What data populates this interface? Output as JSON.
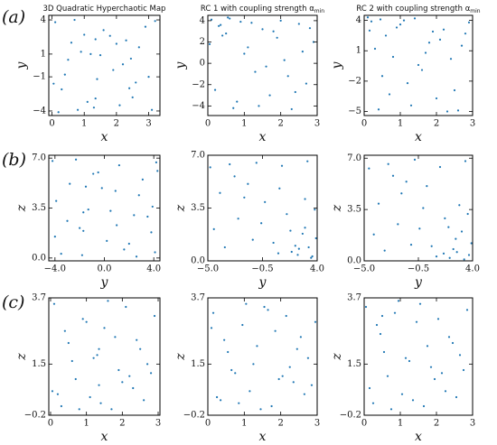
{
  "panel_labels": [
    "(a)",
    "(b)",
    "(c)"
  ],
  "chart_data": [
    {
      "type": "scatter",
      "title": "3D Quadratic Hyperchaotic Map",
      "xlabel": "x",
      "ylabel": "y",
      "color": "#1f77b4",
      "xlim": [
        -0.1,
        3.35
      ],
      "ylim": [
        -4.4,
        4.4
      ],
      "xticks": [
        0,
        1,
        2,
        3
      ],
      "yticks": [
        4,
        1,
        {
          "value": -1,
          "label": "−1"
        },
        {
          "value": -4,
          "label": "−4"
        }
      ],
      "x": [
        0.1,
        0.3,
        0.5,
        0.8,
        1.0,
        1.2,
        1.4,
        1.6,
        1.9,
        2.1,
        2.3,
        2.5,
        2.7,
        3.0,
        3.2,
        0.2,
        0.6,
        1.1,
        1.5,
        2.0,
        2.4,
        2.9,
        0.4,
        0.9,
        1.3,
        1.8,
        2.2,
        2.6,
        3.1,
        0.7,
        1.35,
        1.35,
        2.45,
        0.05
      ],
      "y": [
        3.8,
        -2.1,
        0.5,
        -3.9,
        2.7,
        1.0,
        -1.2,
        3.1,
        -0.4,
        -3.5,
        2.2,
        -2.8,
        1.6,
        -1.0,
        3.9,
        -4.1,
        2.0,
        -3.2,
        0.9,
        1.9,
        -2.0,
        3.4,
        -0.8,
        1.2,
        -3.7,
        2.6,
        0.1,
        -1.5,
        -3.9,
        4.0,
        2.3,
        -2.9,
        0.6,
        -1.6
      ]
    },
    {
      "type": "scatter",
      "title": "RC 1 with coupling strength α",
      "title_subscript": "min",
      "xlabel": "x",
      "ylabel": "y",
      "color": "#1f77b4",
      "xlim": [
        0,
        3
      ],
      "ylim": [
        -4.9,
        4.5
      ],
      "xticks": [
        0,
        1,
        2,
        3
      ],
      "yticks": [
        4,
        2,
        0,
        {
          "value": -2,
          "label": "−2"
        },
        {
          "value": -4,
          "label": "−4"
        }
      ],
      "x": [
        0.1,
        0.3,
        0.5,
        0.7,
        0.9,
        1.1,
        1.3,
        1.5,
        1.7,
        1.9,
        2.1,
        2.3,
        2.5,
        2.7,
        2.9,
        0.2,
        0.6,
        1.0,
        1.4,
        1.8,
        2.2,
        2.6,
        0.4,
        0.8,
        1.2,
        1.6,
        2.0,
        2.4,
        2.8,
        0.05,
        0.35,
        0.55
      ],
      "y": [
        4.1,
        3.5,
        2.8,
        -4.2,
        3.9,
        1.5,
        -0.8,
        3.2,
        -3.0,
        2.4,
        0.3,
        -4.3,
        3.7,
        -1.9,
        2.0,
        -2.5,
        4.2,
        0.9,
        -4.0,
        3.0,
        -1.2,
        1.1,
        2.6,
        -3.6,
        3.8,
        -0.3,
        4.0,
        -2.7,
        3.3,
        1.8,
        3.6,
        4.3
      ]
    },
    {
      "type": "scatter",
      "title": "RC 2 with coupling strength α",
      "title_subscript": "min",
      "xlabel": "x",
      "ylabel": "y",
      "color": "#1f77b4",
      "xlim": [
        0,
        3
      ],
      "ylim": [
        -5.4,
        4.5
      ],
      "xticks": [
        0,
        1,
        2,
        3
      ],
      "yticks": [
        4,
        1,
        {
          "value": -2,
          "label": "−2"
        },
        {
          "value": -5,
          "label": "−5"
        }
      ],
      "x": [
        0.2,
        0.4,
        0.6,
        0.8,
        1.0,
        1.2,
        1.4,
        1.6,
        1.8,
        2.0,
        2.2,
        2.4,
        2.6,
        2.8,
        0.1,
        0.5,
        0.9,
        1.3,
        1.7,
        2.1,
        2.5,
        2.9,
        0.3,
        0.7,
        1.1,
        1.5,
        1.9,
        2.3,
        2.7,
        0.15,
        0.45
      ],
      "y": [
        3.9,
        -4.8,
        2.5,
        0.4,
        3.6,
        -2.2,
        4.2,
        -0.9,
        1.8,
        -3.7,
        3.1,
        0.2,
        -4.9,
        2.7,
        4.3,
        -1.5,
        3.3,
        -4.4,
        0.8,
        2.1,
        -2.9,
        3.8,
        1.2,
        -3.3,
        4.0,
        -0.4,
        2.9,
        -5.0,
        1.5,
        3.0,
        4.1
      ]
    },
    {
      "type": "scatter",
      "xlabel": "y",
      "ylabel": "z",
      "color": "#1f77b4",
      "xlim": [
        -4.5,
        4.5
      ],
      "ylim": [
        -0.2,
        7.2
      ],
      "xticks": [
        {
          "value": -4,
          "label": "−4.0"
        },
        {
          "value": 0,
          "label": "0.0"
        },
        {
          "value": 4,
          "label": "4.0"
        }
      ],
      "yticks": [
        {
          "value": 0,
          "label": "0.0"
        },
        3.5,
        {
          "value": 7,
          "label": "7.0"
        }
      ],
      "x": [
        -4.2,
        -3.5,
        -2.8,
        -2.0,
        -1.3,
        -0.5,
        0.2,
        0.9,
        1.6,
        2.4,
        3.1,
        3.8,
        4.2,
        -3.9,
        -3.0,
        -1.8,
        -0.9,
        0.5,
        1.2,
        2.0,
        2.8,
        3.5,
        4.1,
        -4.0,
        -2.3,
        -0.2,
        1.0,
        2.6,
        3.9,
        -1.5,
        -1.7,
        -1.7,
        4.3
      ],
      "y": [
        6.8,
        0.3,
        5.2,
        2.1,
        3.4,
        6.0,
        1.2,
        4.7,
        0.6,
        3.0,
        5.5,
        1.8,
        6.7,
        4.0,
        2.6,
        0.2,
        5.9,
        3.3,
        6.5,
        1.0,
        4.4,
        2.9,
        0.4,
        1.5,
        6.9,
        4.9,
        2.3,
        0.1,
        3.6,
        5.0,
        3.2,
        1.9,
        6.1
      ]
    },
    {
      "type": "scatter",
      "xlabel": "y",
      "ylabel": "z",
      "color": "#1f77b4",
      "xlim": [
        -5,
        4
      ],
      "ylim": [
        0,
        7
      ],
      "xticks": [
        {
          "value": -5,
          "label": "−5.0"
        },
        {
          "value": -0.5,
          "label": "−0.5"
        },
        {
          "value": 4,
          "label": "4.0"
        }
      ],
      "yticks": [
        {
          "value": 0,
          "label": "0.0"
        },
        3.5,
        {
          "value": 7,
          "label": "7.0"
        }
      ],
      "x": [
        -4.8,
        -4.0,
        -3.2,
        -2.5,
        -1.7,
        -1.0,
        -0.3,
        0.4,
        1.1,
        1.8,
        2.5,
        3.2,
        3.9,
        -4.5,
        -3.6,
        -2.0,
        -0.6,
        0.8,
        1.5,
        2.2,
        3.0,
        3.6,
        3.8,
        2.8,
        1.9,
        0.9,
        -1.3,
        -2.8,
        3.5,
        3.0,
        2.4,
        3.3
      ],
      "y": [
        6.2,
        4.5,
        6.4,
        2.8,
        5.1,
        6.5,
        3.9,
        1.2,
        6.3,
        2.0,
        0.8,
        6.6,
        1.5,
        2.1,
        0.9,
        4.2,
        2.5,
        0.5,
        3.1,
        1.0,
        2.2,
        0.3,
        3.4,
        1.8,
        0.6,
        4.8,
        1.4,
        5.6,
        0.2,
        4.1,
        0.4,
        0.9
      ]
    },
    {
      "type": "scatter",
      "xlabel": "y",
      "ylabel": "z",
      "color": "#1f77b4",
      "xlim": [
        -5,
        4
      ],
      "ylim": [
        0,
        7.2
      ],
      "xticks": [
        {
          "value": -5,
          "label": "−5.0"
        },
        {
          "value": -0.5,
          "label": "−0.5"
        },
        {
          "value": 4,
          "label": "4.0"
        }
      ],
      "yticks": [
        {
          "value": 0,
          "label": "0.0"
        },
        3.5,
        {
          "value": 7,
          "label": "7.0"
        }
      ],
      "x": [
        -4.6,
        -3.8,
        -3.0,
        -2.2,
        -1.5,
        -0.8,
        -0.1,
        0.6,
        1.3,
        2.0,
        2.7,
        3.4,
        3.9,
        -4.2,
        -3.3,
        -1.9,
        -0.4,
        1.0,
        1.7,
        2.4,
        3.1,
        3.7,
        3.6,
        2.6,
        1.6,
        0.2,
        -1.1,
        -2.6,
        3.3,
        2.9,
        2.1
      ],
      "y": [
        6.3,
        3.9,
        6.6,
        2.5,
        5.4,
        6.9,
        3.6,
        1.0,
        6.4,
        2.3,
        0.6,
        6.8,
        1.2,
        1.8,
        0.7,
        4.6,
        2.2,
        0.3,
        2.9,
        0.8,
        2.0,
        0.4,
        3.2,
        1.5,
        0.5,
        5.1,
        1.1,
        5.8,
        0.1,
        3.8,
        0.2
      ]
    },
    {
      "type": "scatter",
      "xlabel": "x",
      "ylabel": "z",
      "color": "#1f77b4",
      "xlim": [
        -0.05,
        3.05
      ],
      "ylim": [
        -0.2,
        3.7
      ],
      "xticks": [
        0,
        1,
        2,
        3
      ],
      "yticks": [
        {
          "value": -0.2,
          "label": "−0.2"
        },
        1.5,
        3.7
      ],
      "x": [
        0.1,
        0.3,
        0.5,
        0.7,
        0.9,
        1.1,
        1.3,
        1.5,
        1.7,
        1.9,
        2.1,
        2.3,
        2.5,
        2.7,
        2.9,
        0.2,
        0.6,
        1.0,
        1.4,
        1.8,
        2.2,
        2.6,
        0.4,
        0.8,
        1.2,
        1.6,
        2.0,
        2.4,
        2.8,
        0.05,
        1.35,
        1.35
      ],
      "y": [
        3.5,
        0.1,
        2.2,
        1.0,
        3.0,
        0.4,
        1.8,
        2.7,
        0.0,
        1.3,
        3.4,
        0.7,
        2.0,
        1.5,
        3.1,
        0.5,
        1.6,
        2.9,
        0.2,
        2.4,
        1.1,
        0.3,
        2.6,
        0.0,
        1.7,
        3.6,
        0.9,
        2.3,
        1.2,
        0.6,
        2.0,
        0.8
      ]
    },
    {
      "type": "scatter",
      "xlabel": "x",
      "ylabel": "z",
      "color": "#1f77b4",
      "xlim": [
        0,
        3
      ],
      "ylim": [
        -0.2,
        3.7
      ],
      "xticks": [
        0,
        1,
        2,
        3
      ],
      "yticks": [
        {
          "value": -0.2,
          "label": "−0.2"
        },
        1.5,
        3.7
      ],
      "x": [
        0.15,
        0.35,
        0.55,
        0.75,
        0.95,
        1.15,
        1.35,
        1.55,
        1.75,
        1.95,
        2.15,
        2.35,
        2.55,
        2.75,
        2.95,
        0.25,
        0.65,
        1.05,
        1.45,
        1.85,
        2.25,
        2.65,
        0.45,
        0.85,
        1.25,
        1.65,
        2.05,
        2.45,
        2.85,
        0.1
      ],
      "y": [
        3.2,
        0.3,
        1.9,
        1.2,
        2.8,
        0.6,
        2.1,
        3.4,
        0.1,
        1.0,
        3.1,
        0.9,
        2.4,
        1.7,
        2.9,
        0.4,
        1.3,
        3.5,
        0.0,
        2.6,
        1.4,
        0.5,
        2.3,
        0.2,
        1.5,
        3.3,
        1.1,
        2.0,
        0.8,
        2.7
      ]
    },
    {
      "type": "scatter",
      "xlabel": "x",
      "ylabel": "z",
      "color": "#1f77b4",
      "xlim": [
        0,
        3
      ],
      "ylim": [
        -0.2,
        3.7
      ],
      "xticks": [
        0,
        1,
        2,
        3
      ],
      "yticks": [
        {
          "value": -0.2,
          "label": "−0.2"
        },
        1.5,
        3.7
      ],
      "x": [
        0.05,
        0.25,
        0.45,
        0.65,
        0.85,
        1.05,
        1.25,
        1.45,
        1.65,
        1.85,
        2.05,
        2.25,
        2.45,
        2.65,
        2.85,
        0.15,
        0.55,
        0.95,
        1.35,
        1.75,
        2.15,
        2.55,
        0.35,
        0.75,
        1.15,
        1.55,
        1.95,
        2.35,
        2.75,
        0.5
      ],
      "y": [
        3.4,
        0.2,
        2.5,
        1.1,
        3.2,
        0.5,
        1.6,
        2.9,
        0.1,
        1.4,
        3.0,
        0.6,
        2.2,
        1.8,
        3.3,
        0.7,
        1.9,
        3.6,
        0.3,
        2.1,
        1.2,
        0.4,
        2.8,
        0.0,
        1.7,
        3.5,
        1.0,
        2.4,
        1.3,
        3.1
      ]
    }
  ]
}
